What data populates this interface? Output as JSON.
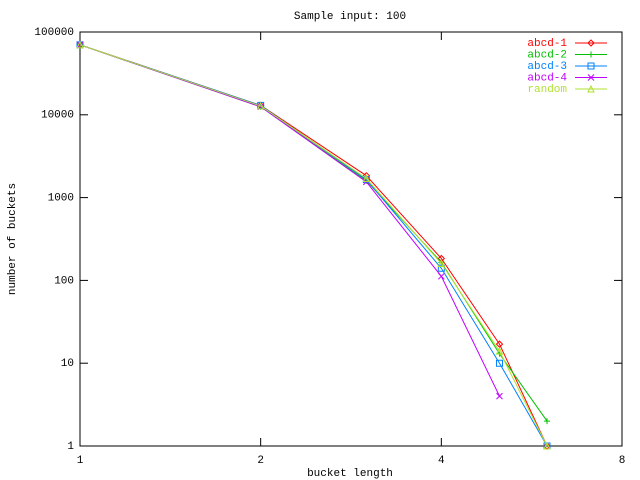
{
  "chart_data": {
    "type": "line",
    "title": "Sample input: 100",
    "x_label": "bucket length",
    "y_label": "number of buckets",
    "x": [
      1,
      2,
      3,
      4,
      5,
      6
    ],
    "series": [
      {
        "name": "abcd-1",
        "color": "#ff0000",
        "marker": "diamond",
        "values": [
          70000,
          13000,
          1840,
          184,
          17,
          1
        ]
      },
      {
        "name": "abcd-2",
        "color": "#00c000",
        "marker": "plus",
        "values": [
          70000,
          12500,
          1600,
          165,
          13,
          2
        ]
      },
      {
        "name": "abcd-3",
        "color": "#0080ff",
        "marker": "square",
        "values": [
          70000,
          13000,
          1650,
          140,
          10,
          1
        ]
      },
      {
        "name": "abcd-4",
        "color": "#c000ff",
        "marker": "cross",
        "values": [
          70000,
          12500,
          1550,
          112,
          4,
          null
        ]
      },
      {
        "name": "random",
        "color": "#b0e030",
        "marker": "triangle",
        "values": [
          70000,
          12800,
          1700,
          160,
          14,
          1
        ]
      }
    ],
    "xlim": [
      1,
      8
    ],
    "xticks": [
      1,
      2,
      4,
      8
    ],
    "xlog": 2,
    "ylim": [
      1,
      100000
    ],
    "yticks": [
      1,
      10,
      100,
      1000,
      10000,
      100000
    ],
    "ylog": 10,
    "legend": "top-right"
  }
}
